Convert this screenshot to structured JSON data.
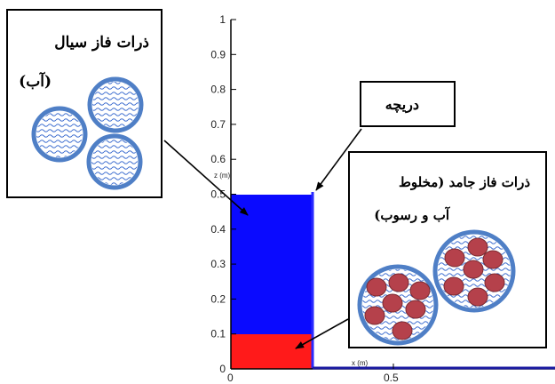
{
  "chart_data": {
    "type": "area",
    "y_axis": {
      "label": "z (m)",
      "ticks": [
        "0",
        "0.1",
        "0.2",
        "0.3",
        "0.4",
        "0.5",
        "0.6",
        "0.7",
        "0.8",
        "0.9",
        "1"
      ],
      "range": [
        0,
        1
      ]
    },
    "x_axis": {
      "label": "x (m)",
      "ticks": [
        "0",
        "0.5"
      ],
      "range": [
        0,
        1.2
      ]
    },
    "regions": [
      {
        "phase": "fluid",
        "color": "#0a0aff",
        "x": [
          0,
          0.3
        ],
        "z": [
          0,
          0.5
        ]
      },
      {
        "phase": "solid",
        "color": "#ff1a1a",
        "x": [
          0,
          0.3
        ],
        "z": [
          0,
          0.1
        ]
      }
    ],
    "gate": {
      "x": 0.3,
      "z_top": 0.51
    }
  },
  "callouts": {
    "fluid": {
      "line1": "ذرات فاز سیال",
      "line2": "(آب)"
    },
    "gate": {
      "label": "دریچه"
    },
    "solid": {
      "line1": "ذرات فاز جامد (مخلوط",
      "line2": "آب و رسوب)"
    }
  },
  "colors": {
    "fluid_region": "#0a0aff",
    "solid_region": "#ff1a1a",
    "particle_ring": "#4f7fc6",
    "particle_wave": "#3f6fd0",
    "sediment_grain": "#b5414b"
  }
}
